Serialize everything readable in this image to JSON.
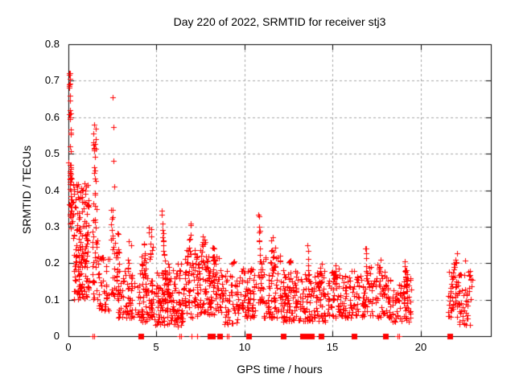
{
  "chart_data": {
    "type": "scatter",
    "title": "Day 220 of 2022, SRMTID for receiver stj3",
    "xlabel": "GPS time / hours",
    "ylabel": "SRMTID / TECUs",
    "xlim": [
      0,
      24
    ],
    "ylim": [
      0,
      0.8
    ],
    "xticks": [
      0,
      5,
      10,
      15,
      20
    ],
    "xtick_labels": [
      "0",
      "5",
      "10",
      "15",
      "20"
    ],
    "yticks": [
      0,
      0.1,
      0.2,
      0.3,
      0.4,
      0.5,
      0.6,
      0.7,
      0.8
    ],
    "ytick_labels": [
      "0",
      "0.1",
      "0.2",
      "0.3",
      "0.4",
      "0.5",
      "0.6",
      "0.7",
      "0.8"
    ],
    "grid": true,
    "legend": "none",
    "marker": "plus",
    "marker_size_px": 7,
    "marker_color": "#ff0000",
    "grid_color": "#a6a6a6",
    "axis_color": "#000000",
    "seed": 2022220,
    "cluster_format": [
      "x_start",
      "x_end",
      "y_min",
      "y_max",
      "count",
      "bottom_bias"
    ],
    "clusters": [
      [
        0.02,
        0.2,
        0.28,
        0.62,
        14,
        1.2
      ],
      [
        0.03,
        0.15,
        0.55,
        0.72,
        6,
        0.9
      ],
      [
        0.05,
        0.3,
        0.3,
        0.47,
        22,
        1.0
      ],
      [
        0.25,
        1.15,
        0.24,
        0.42,
        75,
        1.0
      ],
      [
        0.3,
        1.2,
        0.1,
        0.24,
        85,
        0.9
      ],
      [
        1.38,
        1.6,
        0.48,
        0.585,
        7,
        1.0
      ],
      [
        1.35,
        1.62,
        0.28,
        0.47,
        8,
        1.0
      ],
      [
        1.35,
        1.7,
        0.1,
        0.28,
        24,
        1.1
      ],
      [
        1.7,
        2.35,
        0.07,
        0.22,
        42,
        1.2
      ],
      [
        2.4,
        2.85,
        0.23,
        0.35,
        16,
        1.0
      ],
      [
        2.4,
        3.0,
        0.1,
        0.23,
        30,
        1.0
      ],
      [
        2.8,
        3.65,
        0.05,
        0.2,
        55,
        1.3
      ],
      [
        3.35,
        3.55,
        0.15,
        0.26,
        6,
        1.0
      ],
      [
        3.65,
        4.05,
        0.05,
        0.15,
        13,
        1.2
      ],
      [
        4.05,
        4.5,
        0.04,
        0.22,
        40,
        1.3
      ],
      [
        4.5,
        4.85,
        0.05,
        0.16,
        30,
        1.1
      ],
      [
        4.55,
        4.8,
        0.2,
        0.3,
        12,
        1.0
      ],
      [
        4.9,
        5.65,
        0.03,
        0.18,
        70,
        1.4
      ],
      [
        5.65,
        6.5,
        0.03,
        0.2,
        55,
        1.4
      ],
      [
        6.55,
        7.4,
        0.05,
        0.24,
        65,
        1.2
      ],
      [
        7.4,
        8.65,
        0.06,
        0.22,
        105,
        1.25
      ],
      [
        7.5,
        7.8,
        0.22,
        0.285,
        10,
        1.0
      ],
      [
        8.15,
        8.45,
        0.15,
        0.245,
        12,
        1.0
      ],
      [
        8.7,
        9.65,
        0.03,
        0.18,
        62,
        1.3
      ],
      [
        9.25,
        9.45,
        0.16,
        0.21,
        5,
        1.0
      ],
      [
        9.65,
        10.65,
        0.05,
        0.19,
        72,
        1.3
      ],
      [
        10.75,
        11.05,
        0.08,
        0.2,
        14,
        1.1
      ],
      [
        11.05,
        12.1,
        0.05,
        0.22,
        72,
        1.3
      ],
      [
        11.45,
        11.8,
        0.15,
        0.27,
        14,
        1.0
      ],
      [
        12.15,
        13.1,
        0.04,
        0.18,
        82,
        1.3
      ],
      [
        12.5,
        12.65,
        0.12,
        0.21,
        7,
        1.0
      ],
      [
        13.15,
        14.6,
        0.04,
        0.18,
        100,
        1.3
      ],
      [
        14.2,
        14.4,
        0.13,
        0.2,
        8,
        1.0
      ],
      [
        14.7,
        15.45,
        0.05,
        0.19,
        52,
        1.2
      ],
      [
        15.1,
        15.32,
        0.14,
        0.195,
        6,
        1.0
      ],
      [
        15.5,
        16.55,
        0.05,
        0.18,
        66,
        1.3
      ],
      [
        16.35,
        16.52,
        0.13,
        0.19,
        6,
        1.0
      ],
      [
        16.6,
        17.4,
        0.05,
        0.19,
        52,
        1.2
      ],
      [
        17.45,
        18.35,
        0.05,
        0.18,
        56,
        1.2
      ],
      [
        17.55,
        17.72,
        0.15,
        0.21,
        6,
        1.0
      ],
      [
        18.4,
        19.5,
        0.04,
        0.16,
        66,
        1.3
      ],
      [
        19.05,
        19.32,
        0.13,
        0.21,
        9,
        1.0
      ],
      [
        21.58,
        22.25,
        0.05,
        0.2,
        55,
        1.1
      ],
      [
        21.75,
        22.1,
        0.195,
        0.23,
        5,
        1.0
      ],
      [
        22.2,
        22.95,
        0.03,
        0.18,
        42,
        1.2
      ]
    ],
    "streak_format": [
      "x_start",
      "x_end",
      "y_start",
      "y_end",
      "count",
      "y_jitter"
    ],
    "streaks": [
      [
        0.08,
        0.14,
        0.72,
        0.3,
        18,
        0.012
      ],
      [
        1.45,
        1.55,
        0.585,
        0.3,
        12,
        0.012
      ],
      [
        4.3,
        4.42,
        0.26,
        0.13,
        12,
        0.01
      ],
      [
        5.3,
        5.62,
        0.345,
        0.09,
        26,
        0.014
      ],
      [
        5.62,
        6.25,
        0.12,
        0.035,
        20,
        0.012
      ],
      [
        6.4,
        6.95,
        0.05,
        0.3,
        22,
        0.014
      ],
      [
        10.82,
        10.97,
        0.33,
        0.1,
        18,
        0.012
      ],
      [
        13.58,
        13.66,
        0.24,
        0.12,
        10,
        0.01
      ],
      [
        16.88,
        16.98,
        0.245,
        0.15,
        8,
        0.01
      ],
      [
        19.1,
        19.25,
        0.21,
        0.1,
        10,
        0.01
      ]
    ],
    "outlier_points": [
      [
        0.05,
        0.72
      ],
      [
        0.09,
        0.705
      ],
      [
        2.52,
        0.655
      ],
      [
        2.55,
        0.572
      ],
      [
        2.58,
        0.48
      ],
      [
        2.61,
        0.41
      ],
      [
        3.45,
        0.26
      ],
      [
        6.95,
        0.305
      ],
      [
        11.62,
        0.27
      ],
      [
        22.52,
        0.207
      ]
    ],
    "baseline_markers": {
      "plus_x": [
        1.38,
        1.46,
        6.3,
        6.4,
        7.0,
        7.3,
        9.02,
        9.1,
        13.95,
        18.72,
        18.8
      ],
      "square_x": [
        4.1,
        8.05,
        8.2,
        8.6,
        10.25,
        12.2,
        13.3,
        13.48,
        13.8,
        14.35,
        16.25,
        18.0,
        21.68
      ]
    }
  }
}
